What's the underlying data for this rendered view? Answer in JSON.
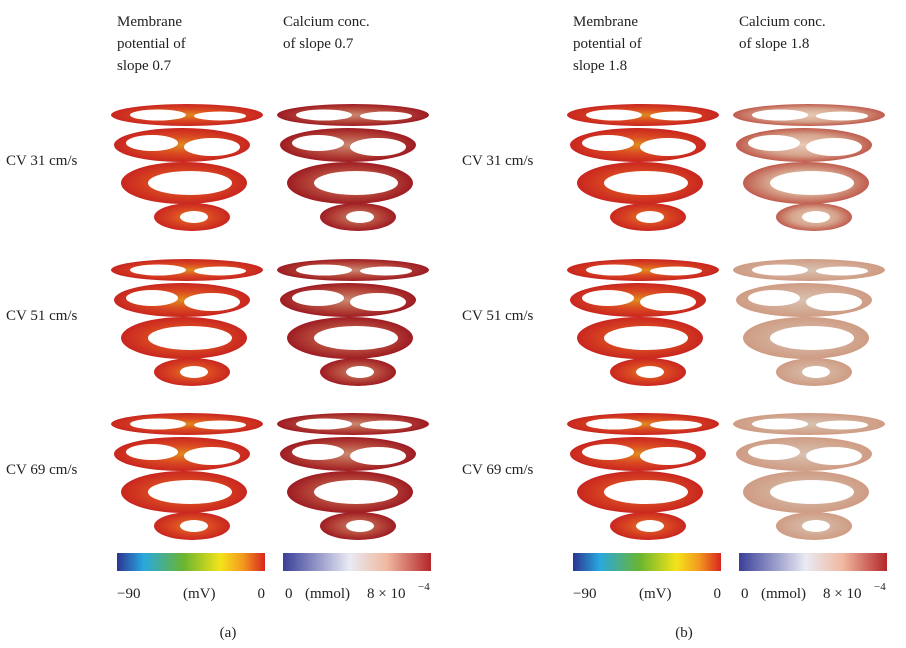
{
  "panels": [
    {
      "label": "(a)",
      "columns": [
        {
          "title": [
            "Membrane",
            "potential of",
            "slope 0.7"
          ]
        },
        {
          "title": [
            "Calcium conc.",
            "of slope 0.7"
          ]
        }
      ],
      "rows": [
        "CV 31 cm/s",
        "CV 51 cm/s",
        "CV 69 cm/s"
      ],
      "colorbars": [
        {
          "min": "−90",
          "unit": "(mV)",
          "max": "0"
        },
        {
          "min": "0",
          "unit": "(mmol)",
          "max_base": "8 × 10",
          "max_exponent": "−4"
        }
      ]
    },
    {
      "label": "(b)",
      "columns": [
        {
          "title": [
            "Membrane",
            "potential of",
            "slope 1.8"
          ]
        },
        {
          "title": [
            "Calcium conc.",
            "of slope 1.8"
          ]
        }
      ],
      "rows": [
        "CV 31 cm/s",
        "CV 51 cm/s",
        "CV 69 cm/s"
      ],
      "colorbars": [
        {
          "min": "−90",
          "unit": "(mV)",
          "max": "0"
        },
        {
          "min": "0",
          "unit": "(mmol)",
          "max_base": "8 × 10",
          "max_exponent": "−4"
        }
      ]
    }
  ]
}
